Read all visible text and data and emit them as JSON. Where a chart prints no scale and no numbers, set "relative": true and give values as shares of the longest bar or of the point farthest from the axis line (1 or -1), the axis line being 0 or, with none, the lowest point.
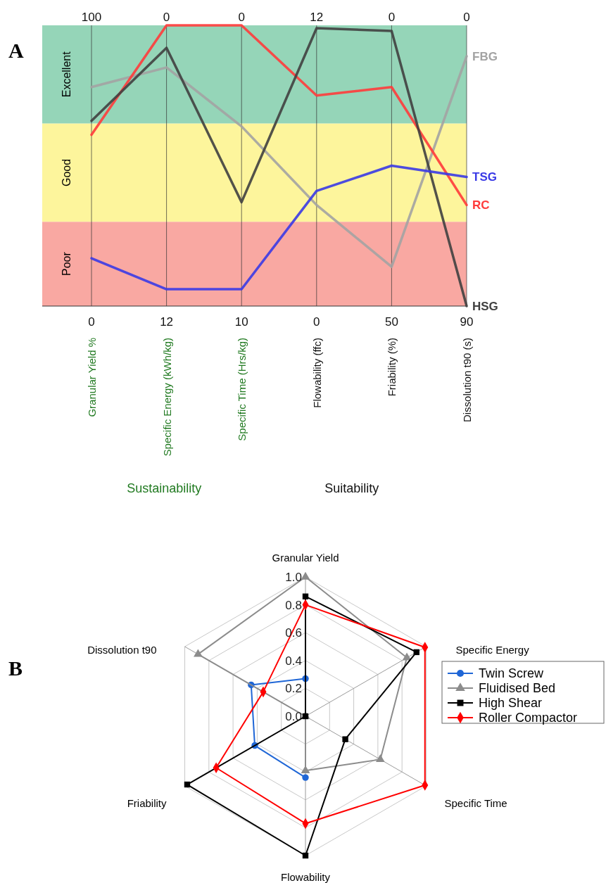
{
  "chart_data": [
    {
      "type": "line",
      "title": "A",
      "relative": true,
      "grid": "x",
      "categories": [
        "Granular Yield %",
        "Specific Energy (kWh/kg)",
        "Specific Time (Hrs/kg)",
        "Flowability (ffc)",
        "Friability (%)",
        "Dissolution t90 (s)"
      ],
      "series": [
        {
          "name": "FBG",
          "color": "#a3a3a3",
          "values": [
            0.78,
            0.85,
            0.64,
            0.36,
            0.14,
            0.89
          ]
        },
        {
          "name": "RC",
          "color": "#ff3b3b",
          "values": [
            0.61,
            1,
            1,
            0.75,
            0.78,
            0.36
          ]
        },
        {
          "name": "HSG",
          "color": "#404040",
          "values": [
            0.66,
            0.92,
            0.37,
            0.99,
            0.98,
            0
          ]
        },
        {
          "name": "TSG",
          "color": "#3a3ae6",
          "values": [
            0.17,
            0.06,
            0.06,
            0.41,
            0.5,
            0.46
          ]
        }
      ],
      "bands": [
        {
          "axis": "y",
          "from": 0.65,
          "to": 1,
          "label": "Excellent",
          "color": "#95d5b8"
        },
        {
          "axis": "y",
          "from": 0.3,
          "to": 0.65,
          "label": "Good",
          "color": "#fdf59c"
        },
        {
          "axis": "y",
          "from": 0,
          "to": 0.3,
          "label": "Poor",
          "color": "#f9a8a2"
        }
      ],
      "annotations": [
        {
          "text": "100",
          "x": "Granular Yield %",
          "y": 1
        },
        {
          "text": "0",
          "x": "Specific Energy (kWh/kg)",
          "y": 1
        },
        {
          "text": "0",
          "x": "Specific Time (Hrs/kg)",
          "y": 1
        },
        {
          "text": "12",
          "x": "Flowability (ffc)",
          "y": 1
        },
        {
          "text": "0",
          "x": "Friability (%)",
          "y": 1
        },
        {
          "text": "0",
          "x": "Dissolution t90 (s)",
          "y": 1
        },
        {
          "text": "0",
          "x": "Granular Yield %",
          "y": 0
        },
        {
          "text": "12",
          "x": "Specific Energy (kWh/kg)",
          "y": 0
        },
        {
          "text": "10",
          "x": "Specific Time (Hrs/kg)",
          "y": 0
        },
        {
          "text": "0",
          "x": "Flowability (ffc)",
          "y": 0
        },
        {
          "text": "50",
          "x": "Friability (%)",
          "y": 0
        },
        {
          "text": "90",
          "x": "Dissolution t90 (s)",
          "y": 0
        },
        "Sustainability",
        "Suitability"
      ]
    },
    {
      "type": "radar",
      "title": "B",
      "categories": [
        "Granular Yield",
        "Specific Energy",
        "Specific Time",
        "Flowability",
        "Friability",
        "Dissolution t90"
      ],
      "ylim": [
        0,
        1
      ],
      "yticks": [
        {
          "value": 0,
          "label": "0.0"
        },
        0.2,
        0.4,
        0.6,
        0.8,
        {
          "value": 1,
          "label": "1.0"
        }
      ],
      "grid": true,
      "legend": "right",
      "series": [
        {
          "name": "Twin Screw",
          "color": "#1f66d6",
          "marker": "circle",
          "values": [
            0.27,
            null,
            null,
            0.44,
            0.42,
            0.45
          ]
        },
        {
          "name": "Fluidised Bed",
          "color": "#8c8c8c",
          "marker": "triangle",
          "values": [
            1,
            0.84,
            0.62,
            0.39,
            0,
            0.89
          ]
        },
        {
          "name": "High Shear",
          "color": "#000000",
          "marker": "square",
          "values": [
            0.86,
            0.92,
            0.33,
            1,
            0.98,
            0
          ]
        },
        {
          "name": "Roller Compactor",
          "color": "#ff0000",
          "marker": "diamond",
          "values": [
            0.8,
            0.99,
            0.99,
            0.77,
            0.74,
            0.35
          ]
        }
      ]
    }
  ]
}
